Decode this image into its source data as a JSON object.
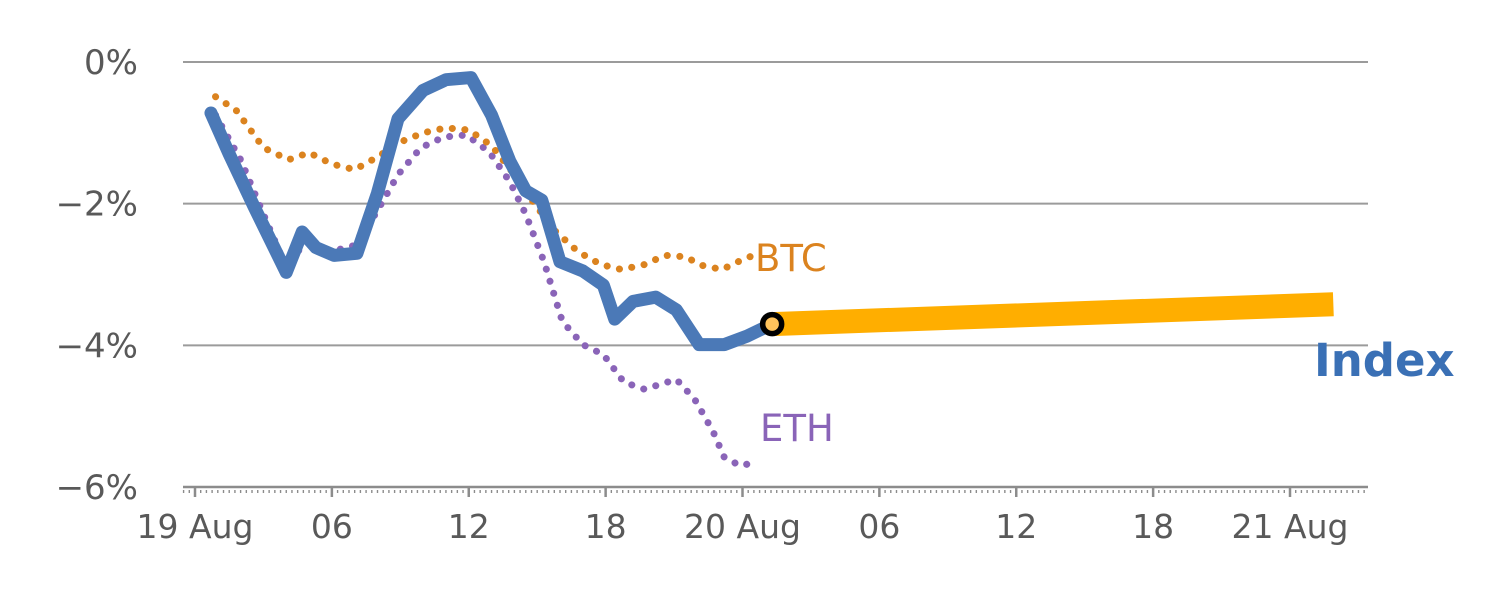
{
  "chart_data": {
    "type": "line",
    "title": "",
    "xlabel": "",
    "ylabel": "",
    "x_axis": {
      "unit": "hours since 19 Aug 00:00",
      "ticks": [
        {
          "hour": 0,
          "label": "19 Aug"
        },
        {
          "hour": 6,
          "label": "06"
        },
        {
          "hour": 12,
          "label": "12"
        },
        {
          "hour": 18,
          "label": "18"
        },
        {
          "hour": 24,
          "label": "20 Aug"
        },
        {
          "hour": 30,
          "label": "06"
        },
        {
          "hour": 36,
          "label": "12"
        },
        {
          "hour": 42,
          "label": "18"
        },
        {
          "hour": 48,
          "label": "21 Aug"
        }
      ]
    },
    "y_axis": {
      "unit": "%",
      "range": [
        -6,
        0
      ],
      "ticks": [
        {
          "value": 0,
          "label": "0%"
        },
        {
          "value": -2,
          "label": "−2%"
        },
        {
          "value": -4,
          "label": "−4%"
        },
        {
          "value": -6,
          "label": "−6%"
        }
      ]
    },
    "grid": true,
    "legend_position": "inline-annotations",
    "series": [
      {
        "name": "ETH",
        "style": "dotted",
        "color": "#8A64B8",
        "x": [
          0.9,
          2.0,
          3.0,
          4.0,
          4.9,
          5.9,
          6.9,
          7.9,
          8.9,
          9.9,
          10.9,
          11.9,
          12.9,
          13.8,
          14.5,
          15.3,
          16.1,
          17.0,
          17.9,
          18.8,
          19.7,
          20.4,
          21.1,
          21.9,
          22.7,
          23.2,
          23.9,
          24.6
        ],
        "y": [
          -0.75,
          -1.38,
          -2.15,
          -2.9,
          -2.51,
          -2.68,
          -2.6,
          -2.15,
          -1.59,
          -1.21,
          -1.06,
          -1.03,
          -1.27,
          -1.69,
          -2.15,
          -2.82,
          -3.66,
          -3.99,
          -4.13,
          -4.52,
          -4.62,
          -4.55,
          -4.48,
          -4.76,
          -5.21,
          -5.58,
          -5.7,
          -5.65
        ]
      },
      {
        "name": "BTC",
        "style": "dotted",
        "color": "#DB831F",
        "x": [
          0.9,
          1.8,
          3.0,
          4.1,
          5.0,
          6.0,
          7.0,
          8.0,
          9.0,
          10.0,
          11.0,
          12.0,
          13.0,
          14.0,
          14.9,
          15.8,
          16.8,
          17.8,
          18.7,
          19.7,
          20.6,
          21.5,
          22.2,
          23.1,
          24.0,
          24.8
        ],
        "y": [
          -0.49,
          -0.68,
          -1.21,
          -1.38,
          -1.28,
          -1.44,
          -1.52,
          -1.34,
          -1.13,
          -1.0,
          -0.93,
          -0.96,
          -1.18,
          -1.59,
          -2.01,
          -2.39,
          -2.68,
          -2.86,
          -2.93,
          -2.86,
          -2.73,
          -2.75,
          -2.87,
          -2.93,
          -2.79,
          -2.69
        ]
      },
      {
        "name": "Index",
        "style": "solid",
        "color": "#4B79B7",
        "x": [
          0.7,
          1.5,
          2.6,
          4.0,
          4.7,
          5.3,
          6.1,
          7.1,
          8.0,
          8.9,
          10.0,
          11.0,
          12.1,
          13.0,
          13.8,
          14.5,
          15.2,
          16.0,
          17.0,
          17.9,
          18.4,
          19.2,
          20.2,
          21.1,
          22.1,
          23.2,
          24.2,
          25.3
        ],
        "y": [
          -0.72,
          -1.3,
          -2.05,
          -2.97,
          -2.4,
          -2.62,
          -2.73,
          -2.7,
          -1.85,
          -0.8,
          -0.4,
          -0.25,
          -0.22,
          -0.75,
          -1.4,
          -1.82,
          -1.95,
          -2.82,
          -2.95,
          -3.15,
          -3.63,
          -3.38,
          -3.32,
          -3.5,
          -3.99,
          -3.99,
          -3.87,
          -3.7
        ]
      }
    ],
    "band": {
      "name": "Index extension band",
      "color": "#FFAE00",
      "x": [
        25.3,
        49.9
      ],
      "y": [
        -3.7,
        -3.42
      ],
      "thickness_pct": 0.34
    },
    "marker": {
      "x": 25.3,
      "y": -3.7,
      "ring_color": "#000000",
      "fill_color": "#FFC35C"
    },
    "colors": {
      "grid": "#9B9B9B",
      "axis": "#8C8C8C",
      "tick_text": "#595959"
    }
  },
  "labels": {
    "btc": {
      "text": "BTC",
      "color": "#DB831F"
    },
    "eth": {
      "text": "ETH",
      "color": "#8A64B8"
    },
    "index": {
      "text": "Index",
      "color": "#3A70B5"
    }
  }
}
